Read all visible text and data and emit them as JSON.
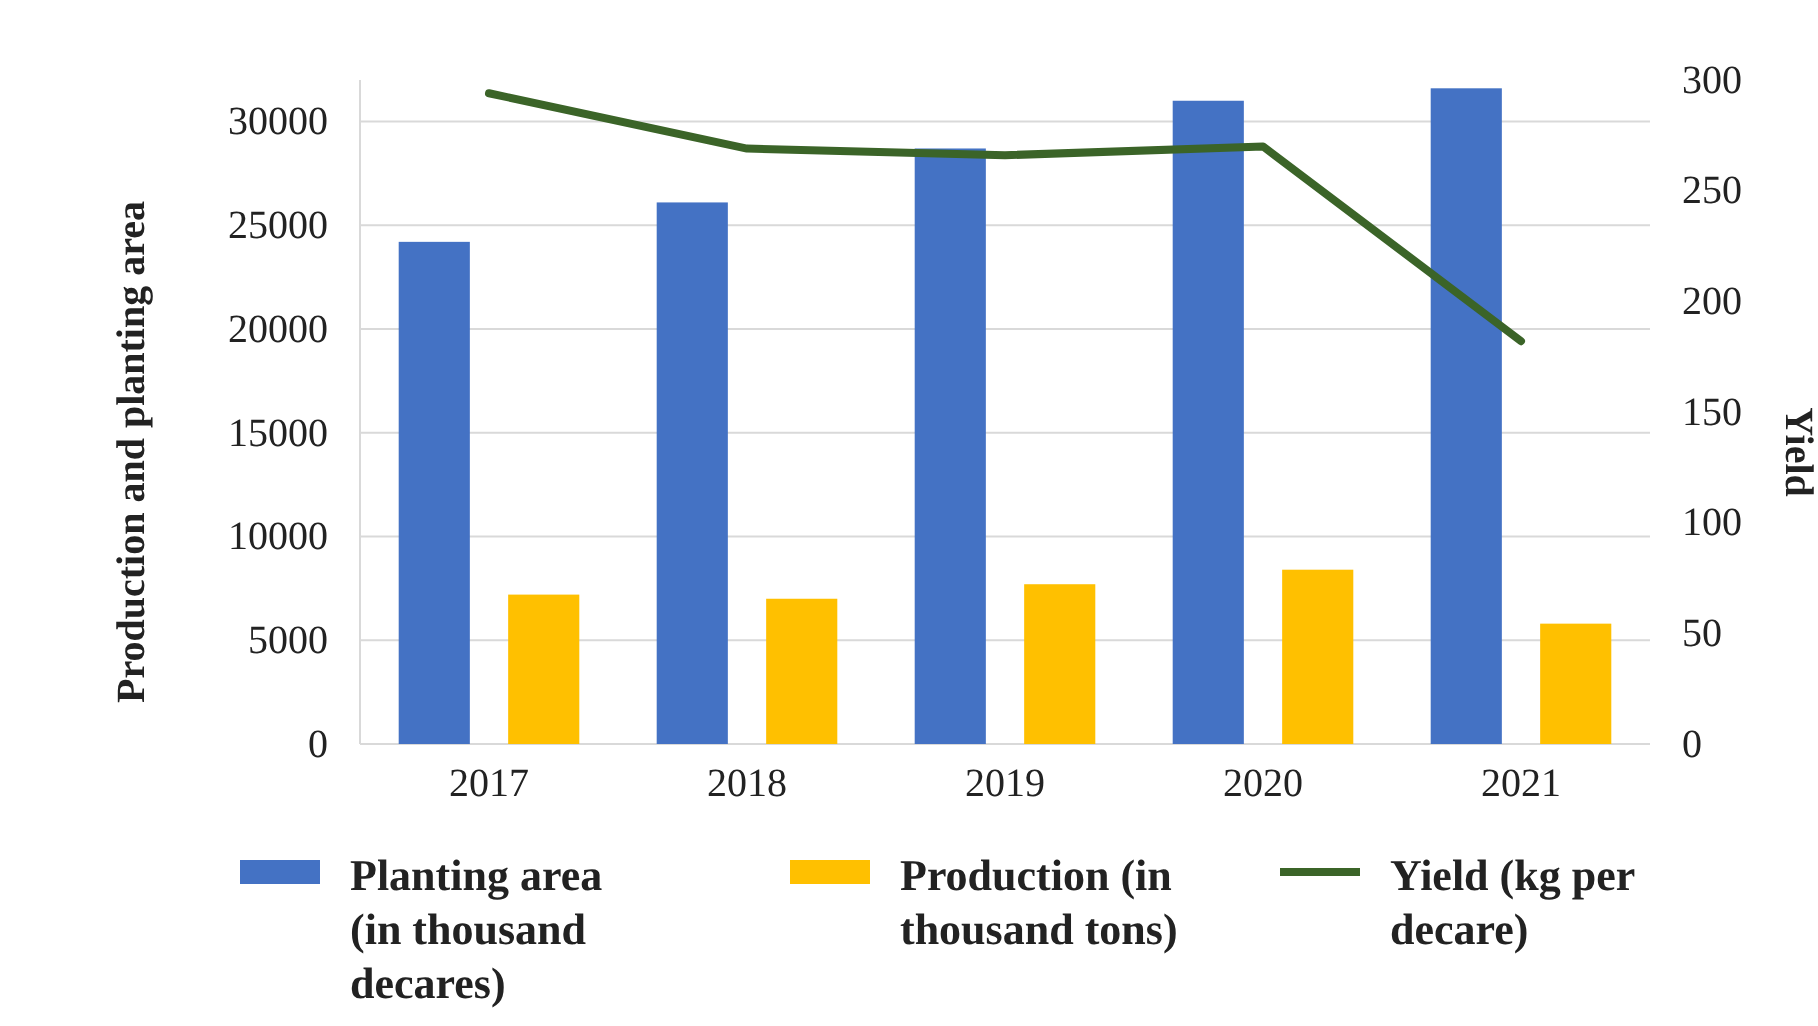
{
  "chart_data": {
    "type": "bar",
    "ylabel": "Production and planting area",
    "y2label": "Yield",
    "categories": [
      "2017",
      "2018",
      "2019",
      "2020",
      "2021"
    ],
    "series": [
      {
        "name": "Planting area (in thousand decares)",
        "color": "#4472c4",
        "values": [
          24200,
          26100,
          28700,
          31000,
          31600
        ]
      },
      {
        "name": "Production (in thousand tons)",
        "color": "#ffc000",
        "values": [
          7200,
          7000,
          7700,
          8400,
          5800
        ]
      },
      {
        "name": "Yield (kg per decare)",
        "type": "line",
        "axis": "y2",
        "color": "#3b6428",
        "values": [
          294,
          269,
          266,
          270,
          182
        ]
      }
    ],
    "ylim": [
      0,
      32000
    ],
    "yticks": [
      0,
      5000,
      10000,
      15000,
      20000,
      25000,
      30000
    ],
    "y2lim": [
      0,
      300
    ],
    "y2ticks": [
      0,
      50,
      100,
      150,
      200,
      250,
      300
    ],
    "grid": "y",
    "legend": "bottom",
    "marker": "none",
    "line_style": "solid"
  }
}
